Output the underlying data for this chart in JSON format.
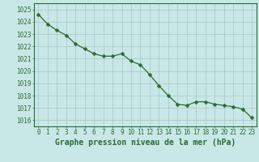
{
  "x": [
    0,
    1,
    2,
    3,
    4,
    5,
    6,
    7,
    8,
    9,
    10,
    11,
    12,
    13,
    14,
    15,
    16,
    17,
    18,
    19,
    20,
    21,
    22,
    23
  ],
  "y": [
    1024.6,
    1023.8,
    1023.3,
    1022.9,
    1022.2,
    1021.8,
    1021.4,
    1021.2,
    1021.2,
    1021.4,
    1020.8,
    1020.5,
    1019.7,
    1018.8,
    1018.0,
    1017.3,
    1017.2,
    1017.5,
    1017.5,
    1017.3,
    1017.2,
    1017.1,
    1016.9,
    1016.2
  ],
  "line_color": "#2d6a2d",
  "marker": "D",
  "marker_size": 2.5,
  "bg_color": "#c8e8e8",
  "grid_color": "#a8c8c8",
  "xlabel": "Graphe pression niveau de la mer (hPa)",
  "xlabel_fontsize": 7,
  "ylabel_ticks": [
    1016,
    1017,
    1018,
    1019,
    1020,
    1021,
    1022,
    1023,
    1024,
    1025
  ],
  "xlim": [
    -0.5,
    23.5
  ],
  "ylim": [
    1015.5,
    1025.5
  ],
  "xticks": [
    0,
    1,
    2,
    3,
    4,
    5,
    6,
    7,
    8,
    9,
    10,
    11,
    12,
    13,
    14,
    15,
    16,
    17,
    18,
    19,
    20,
    21,
    22,
    23
  ],
  "tick_fontsize": 5.5,
  "label_color": "#2d6a2d",
  "linewidth": 0.9
}
